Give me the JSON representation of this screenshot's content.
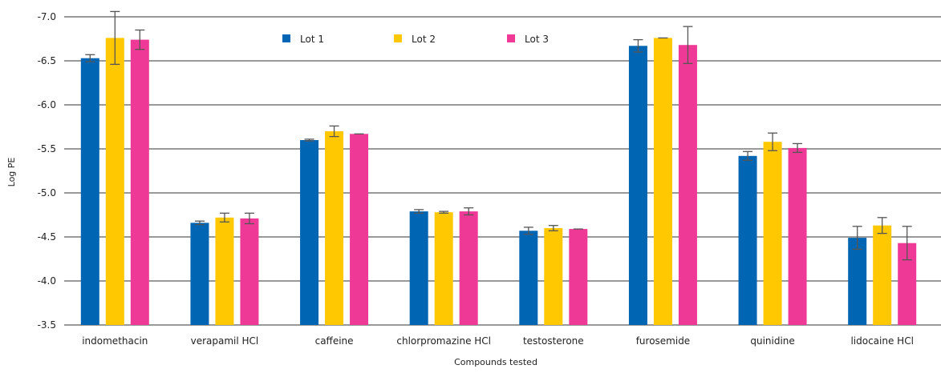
{
  "chart_data": {
    "type": "bar",
    "title": "",
    "xlabel": "Compounds tested",
    "ylabel": "Log PE",
    "ylim": [
      -3.5,
      -7.0
    ],
    "y_inverted": true,
    "yticks": [
      "-7.0",
      "-6.5",
      "-6.0",
      "-5.5",
      "-5.0",
      "-4.5",
      "-4.0",
      "-3.5"
    ],
    "grid": true,
    "legend_position": "top-center",
    "categories": [
      "indomethacin",
      "verapamil HCl",
      "caffeine",
      "chlorpromazine HCl",
      "testosterone",
      "furosemide",
      "quinidine",
      "lidocaine HCl"
    ],
    "series": [
      {
        "name": "Lot 1",
        "color": "#0066b3",
        "values": [
          -6.53,
          -4.66,
          -5.6,
          -4.79,
          -4.57,
          -6.67,
          -5.42,
          -4.49
        ],
        "errors": [
          0.04,
          0.02,
          0.01,
          0.02,
          0.04,
          0.07,
          0.05,
          0.13
        ]
      },
      {
        "name": "Lot 2",
        "color": "#ffc800",
        "values": [
          -6.76,
          -4.72,
          -5.7,
          -4.78,
          -4.6,
          -6.76,
          -5.58,
          -4.63
        ],
        "errors": [
          0.3,
          0.05,
          0.06,
          0.01,
          0.03,
          0.0,
          0.1,
          0.09
        ]
      },
      {
        "name": "Lot 3",
        "color": "#ee3a96",
        "values": [
          -6.74,
          -4.71,
          -5.67,
          -4.79,
          -4.59,
          -6.68,
          -5.51,
          -4.43
        ],
        "errors": [
          0.11,
          0.06,
          0.0,
          0.04,
          0.0,
          0.21,
          0.05,
          0.19
        ]
      }
    ]
  }
}
